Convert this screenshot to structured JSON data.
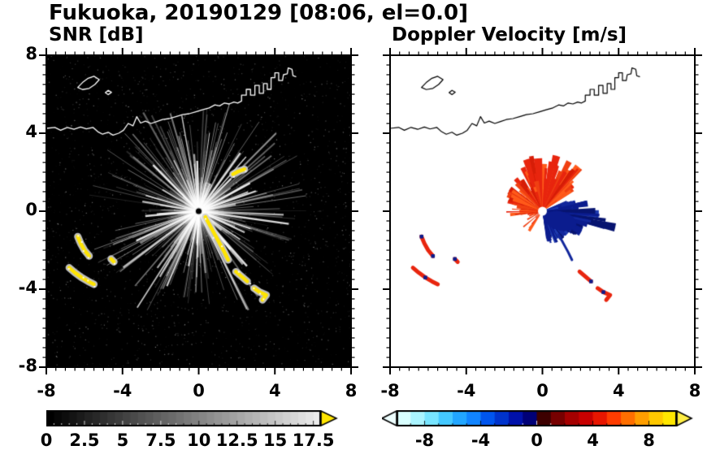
{
  "title": "Fukuoka, 20190129 [08:06, el=0.0]",
  "panels": [
    {
      "id": "snr",
      "title": "SNR [dB]",
      "axis": {
        "xmin": -8,
        "xmax": 8,
        "ymin": -8,
        "ymax": 8,
        "xticks": [
          -8,
          -4,
          0,
          4,
          8
        ],
        "xtick_labels": [
          "-8",
          "-4",
          "0",
          "4",
          "8"
        ],
        "yticks": [
          -8,
          -4,
          0,
          4,
          8
        ],
        "ytick_labels": [
          "-8",
          "-4",
          "0",
          "4",
          "8"
        ],
        "minor_step": 0.5
      },
      "colorbar": {
        "min": 0,
        "max": 18,
        "tick_values": [
          0,
          2.5,
          5,
          7.5,
          10,
          12.5,
          15,
          17.5
        ],
        "tick_labels": [
          "0",
          "2.5",
          "5",
          "7.5",
          "10",
          "12.5",
          "15",
          "17.5"
        ],
        "style": "grayscale",
        "start_color": "#000000",
        "end_color": "#ebebeb",
        "overflow_arrow_color": "#ffe400"
      }
    },
    {
      "id": "doppler",
      "title": "Doppler Velocity [m/s]",
      "axis": {
        "xmin": -8,
        "xmax": 8,
        "ymin": -8,
        "ymax": 8,
        "xticks": [
          -8,
          -4,
          0,
          4,
          8
        ],
        "xtick_labels": [
          "-8",
          "-4",
          "0",
          "4",
          "8"
        ],
        "yticks": [
          -8,
          -4,
          0,
          4,
          8
        ],
        "ytick_labels": [
          "-8",
          "-4",
          "0",
          "4",
          "8"
        ],
        "minor_step": 0.5
      },
      "colorbar": {
        "min": -10,
        "max": 10,
        "tick_values": [
          -8,
          -4,
          0,
          4,
          8
        ],
        "tick_labels": [
          "-8",
          "-4",
          "0",
          "4",
          "8"
        ],
        "style": "diverging",
        "segment_colors": [
          "#d9ffff",
          "#aaf4ff",
          "#77e4ff",
          "#44c8ff",
          "#22a6ff",
          "#1184ff",
          "#0055ee",
          "#0033cc",
          "#0011aa",
          "#000077",
          "#3d0000",
          "#770000",
          "#a50000",
          "#c80000",
          "#e81600",
          "#ff3c00",
          "#ff6f00",
          "#ff9e00",
          "#ffc800",
          "#ffe600"
        ],
        "underflow_arrow_color": "#eeffff",
        "overflow_arrow_color": "#ffee44"
      }
    }
  ],
  "chart_data": {
    "type": "heatmap",
    "description": "Dual-panel single-elevation (el=0.0) Doppler radar PPI display, Fukuoka, 2019-01-29 08:06. Left panel: SNR [dB] on a black background with bright white radial ground-clutter streaks emanating from the radar at (0,0) and yellow high-SNR terrain/sea-clutter echoes; right panel: Doppler velocity [m/s] with red (away) echoes fanning north/northwest of the radar, dark-blue (toward) echoes east-southeast of it, and matching red/blue clutter patches southwest. A thin coastline (Hakata Bay) crosses the upper third of both panels.",
    "x_range": [
      -8,
      8
    ],
    "y_range": [
      -8,
      8
    ],
    "features": {
      "radar_center": [
        0,
        0
      ],
      "coastline": {
        "color_on_snr": "#ffffff",
        "color_on_doppler": "#000000",
        "main": [
          [
            -8,
            4.25
          ],
          [
            -7.55,
            4.3
          ],
          [
            -7.25,
            4.15
          ],
          [
            -6.9,
            4.3
          ],
          [
            -6.55,
            4.2
          ],
          [
            -6.2,
            4.32
          ],
          [
            -5.9,
            4.22
          ],
          [
            -5.55,
            4.3
          ],
          [
            -5.3,
            4.08
          ],
          [
            -5.05,
            3.95
          ],
          [
            -4.75,
            4.05
          ],
          [
            -4.5,
            3.9
          ],
          [
            -4.2,
            4.0
          ],
          [
            -3.95,
            4.15
          ],
          [
            -3.7,
            4.5
          ],
          [
            -3.45,
            4.38
          ],
          [
            -3.25,
            4.85
          ],
          [
            -3.05,
            4.52
          ],
          [
            -2.8,
            4.62
          ],
          [
            -2.5,
            4.5
          ],
          [
            -2.2,
            4.6
          ],
          [
            -1.9,
            4.7
          ],
          [
            -1.55,
            4.75
          ],
          [
            -1.2,
            4.85
          ],
          [
            -0.85,
            4.95
          ],
          [
            -0.5,
            5.0
          ],
          [
            -0.15,
            5.1
          ],
          [
            0.2,
            5.2
          ],
          [
            0.55,
            5.3
          ],
          [
            0.85,
            5.45
          ],
          [
            1.1,
            5.4
          ],
          [
            1.35,
            5.55
          ],
          [
            1.6,
            5.5
          ],
          [
            1.85,
            5.6
          ],
          [
            2.05,
            5.55
          ],
          [
            2.25,
            5.65
          ],
          [
            2.25,
            5.95
          ],
          [
            2.5,
            5.95
          ],
          [
            2.5,
            6.25
          ],
          [
            2.72,
            6.25
          ],
          [
            2.72,
            5.95
          ],
          [
            2.95,
            5.95
          ],
          [
            2.95,
            6.45
          ],
          [
            3.18,
            6.45
          ],
          [
            3.18,
            6.05
          ],
          [
            3.4,
            6.05
          ],
          [
            3.4,
            6.55
          ],
          [
            3.6,
            6.55
          ],
          [
            3.6,
            6.25
          ],
          [
            3.8,
            6.25
          ],
          [
            3.8,
            6.85
          ],
          [
            4.0,
            6.85
          ],
          [
            4.0,
            7.1
          ],
          [
            4.2,
            7.1
          ],
          [
            4.2,
            6.7
          ],
          [
            4.4,
            6.7
          ],
          [
            4.45,
            7.0
          ],
          [
            4.65,
            7.05
          ],
          [
            4.7,
            7.35
          ],
          [
            4.9,
            7.28
          ],
          [
            4.95,
            6.95
          ],
          [
            5.1,
            6.9
          ]
        ],
        "islands": [
          [
            [
              -6.35,
              6.35
            ],
            [
              -6.1,
              6.6
            ],
            [
              -5.8,
              6.82
            ],
            [
              -5.5,
              6.92
            ],
            [
              -5.22,
              6.75
            ],
            [
              -5.45,
              6.5
            ],
            [
              -5.75,
              6.3
            ],
            [
              -6.1,
              6.24
            ],
            [
              -6.35,
              6.35
            ]
          ],
          [
            [
              -4.9,
              6.08
            ],
            [
              -4.75,
              6.2
            ],
            [
              -4.58,
              6.1
            ],
            [
              -4.75,
              5.98
            ],
            [
              -4.9,
              6.08
            ]
          ]
        ]
      },
      "snr": {
        "background": "#000000",
        "streak_color": "#ffffff",
        "clutter_core_color": "#ffe400",
        "clutter_fringe_color": "#d2d2d2",
        "clutter_paths": [
          {
            "pts": [
              [
                0.35,
                -0.3
              ],
              [
                0.6,
                -0.75
              ],
              [
                0.85,
                -1.2
              ],
              [
                1.1,
                -1.65
              ],
              [
                1.35,
                -2.1
              ],
              [
                1.55,
                -2.5
              ]
            ]
          },
          {
            "pts": [
              [
                1.95,
                -3.1
              ],
              [
                2.25,
                -3.35
              ],
              [
                2.55,
                -3.6
              ]
            ]
          },
          {
            "pts": [
              [
                2.9,
                -3.95
              ],
              [
                3.2,
                -4.15
              ],
              [
                3.55,
                -4.3
              ],
              [
                3.35,
                -4.55
              ]
            ]
          },
          {
            "pts": [
              [
                -6.35,
                -1.3
              ],
              [
                -6.2,
                -1.65
              ],
              [
                -6.0,
                -2.0
              ],
              [
                -5.75,
                -2.3
              ]
            ]
          },
          {
            "pts": [
              [
                -6.8,
                -2.9
              ],
              [
                -6.5,
                -3.15
              ],
              [
                -6.15,
                -3.4
              ],
              [
                -5.8,
                -3.6
              ],
              [
                -5.5,
                -3.75
              ]
            ]
          },
          {
            "pts": [
              [
                1.8,
                1.9
              ],
              [
                2.1,
                2.05
              ],
              [
                2.4,
                2.15
              ]
            ]
          },
          {
            "pts": [
              [
                -4.6,
                -2.45
              ],
              [
                -4.45,
                -2.6
              ]
            ]
          }
        ]
      },
      "doppler": {
        "background": "#ffffff",
        "away_color": "#e8250e",
        "toward_color": "#0b1c8e",
        "away_fan": {
          "angle_start_deg": 35,
          "angle_end_deg": 195,
          "max_radius": 3.0
        },
        "toward_fan": {
          "angle_start_deg": -80,
          "angle_end_deg": 20,
          "max_radius": 2.2,
          "tip_point": [
            3.35,
            -0.45
          ]
        },
        "clutter_path_indices": [
          1,
          2,
          3,
          4,
          6
        ]
      }
    }
  }
}
